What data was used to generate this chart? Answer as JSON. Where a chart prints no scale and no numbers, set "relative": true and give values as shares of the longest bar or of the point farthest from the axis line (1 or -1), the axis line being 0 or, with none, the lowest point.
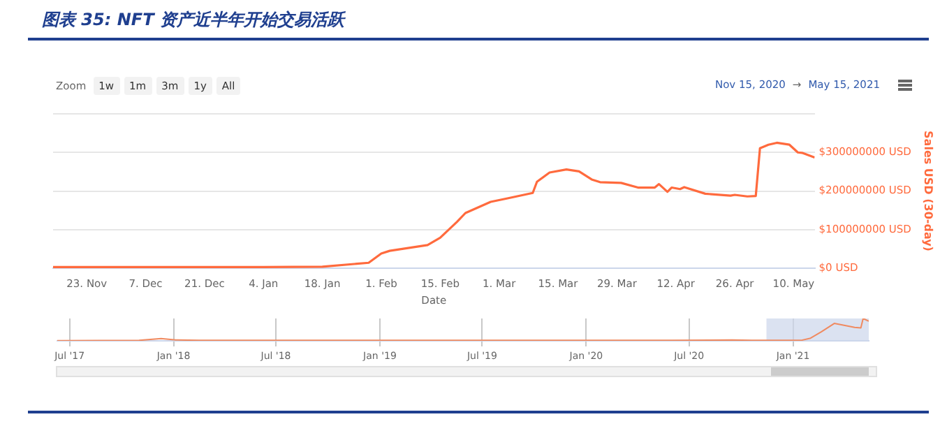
{
  "chart_data": [
    {
      "type": "line",
      "title": "图表 35: NFT 资产近半年开始交易活跃",
      "xlabel": "Date",
      "ylabel": "Sales USD (30-day)",
      "annotations": [
        "Zoom",
        "1w",
        "1m",
        "3m",
        "1y",
        "All",
        "Nov 15, 2020",
        "→",
        "May 15, 2021"
      ],
      "x": [
        "2020-11-15",
        "2020-12-01",
        "2020-12-20",
        "2021-01-04",
        "2021-01-18",
        "2021-01-29",
        "2021-02-01",
        "2021-02-03",
        "2021-02-12",
        "2021-02-15",
        "2021-02-19",
        "2021-02-21",
        "2021-02-27",
        "2021-03-03",
        "2021-03-09",
        "2021-03-10",
        "2021-03-13",
        "2021-03-17",
        "2021-03-20",
        "2021-03-23",
        "2021-03-25",
        "2021-03-30",
        "2021-04-03",
        "2021-04-07",
        "2021-04-08",
        "2021-04-10",
        "2021-04-11",
        "2021-04-13",
        "2021-04-14",
        "2021-04-19",
        "2021-04-25",
        "2021-04-26",
        "2021-04-29",
        "2021-05-01",
        "2021-05-02",
        "2021-05-04",
        "2021-05-06",
        "2021-05-09",
        "2021-05-11",
        "2021-05-12",
        "2021-05-15"
      ],
      "series": [
        {
          "color": "#ff6a3d",
          "values": [
            3000000,
            3000000,
            3000000,
            3000000,
            4000000,
            14000000,
            38000000,
            45000000,
            60000000,
            79000000,
            120000000,
            143000000,
            172000000,
            181000000,
            195000000,
            224000000,
            248000000,
            256000000,
            251000000,
            230000000,
            223000000,
            221000000,
            209000000,
            209000000,
            218000000,
            198000000,
            209000000,
            205000000,
            210000000,
            193000000,
            188000000,
            190000000,
            186000000,
            187000000,
            311000000,
            320000000,
            325000000,
            320000000,
            300000000,
            299000000,
            287000000
          ]
        }
      ],
      "xlim": [
        "2020-11-15",
        "2021-05-15"
      ],
      "xticks": [
        {
          "value": "2020-11-23",
          "label": "23. Nov"
        },
        {
          "value": "2020-12-07",
          "label": "7. Dec"
        },
        {
          "value": "2020-12-21",
          "label": "21. Dec"
        },
        {
          "value": "2021-01-04",
          "label": "4. Jan"
        },
        {
          "value": "2021-01-18",
          "label": "18. Jan"
        },
        {
          "value": "2021-02-01",
          "label": "1. Feb"
        },
        {
          "value": "2021-02-15",
          "label": "15. Feb"
        },
        {
          "value": "2021-03-01",
          "label": "1. Mar"
        },
        {
          "value": "2021-03-15",
          "label": "15. Mar"
        },
        {
          "value": "2021-03-29",
          "label": "29. Mar"
        },
        {
          "value": "2021-04-12",
          "label": "12. Apr"
        },
        {
          "value": "2021-04-26",
          "label": "26. Apr"
        },
        {
          "value": "2021-05-10",
          "label": "10. May"
        }
      ],
      "ylim": [
        0,
        400000000
      ],
      "yticks": [
        {
          "value": 0,
          "label": "$0 USD"
        },
        {
          "value": 100000000,
          "label": "$100000000 USD"
        },
        {
          "value": 200000000,
          "label": "$200000000 USD"
        },
        {
          "value": 300000000,
          "label": "$300000000 USD"
        },
        {
          "value": 400000000,
          "label": null
        }
      ],
      "grid": "y",
      "marker": "none"
    },
    {
      "type": "line",
      "relative": true,
      "x": [
        "2017-06-09",
        "2017-11-01",
        "2017-12-10",
        "2018-01-05",
        "2018-02-15",
        "2018-08-01",
        "2019-06-01",
        "2020-06-01",
        "2020-09-15",
        "2020-10-20",
        "2021-01-15",
        "2021-02-01",
        "2021-02-20",
        "2021-03-15",
        "2021-04-20",
        "2021-05-01",
        "2021-05-05",
        "2021-05-15"
      ],
      "series": [
        {
          "color": "#f08a60",
          "values": [
            0.01,
            0.02,
            0.1,
            0.04,
            0.02,
            0.02,
            0.02,
            0.02,
            0.04,
            0.02,
            0.02,
            0.12,
            0.4,
            0.78,
            0.6,
            0.58,
            1,
            0.88
          ]
        }
      ],
      "xlim": [
        "2017-06-09",
        "2021-05-15"
      ],
      "xticks": [
        {
          "value": "2017-07-01",
          "label": "Jul '17"
        },
        {
          "value": "2018-01-01",
          "label": "Jan '18"
        },
        {
          "value": "2018-07-01",
          "label": "Jul '18"
        },
        {
          "value": "2019-01-01",
          "label": "Jan '19"
        },
        {
          "value": "2019-07-01",
          "label": "Jul '19"
        },
        {
          "value": "2020-01-01",
          "label": "Jan '20"
        },
        {
          "value": "2020-07-01",
          "label": "Jul '20"
        },
        {
          "value": "2021-01-01",
          "label": "Jan '21"
        }
      ],
      "bands": [
        {
          "axis": "x",
          "from": "2020-11-15",
          "to": "2021-05-15",
          "color": "#ccd6eb"
        }
      ],
      "grid": "x",
      "tick_labels": "x",
      "marker": "none"
    }
  ]
}
